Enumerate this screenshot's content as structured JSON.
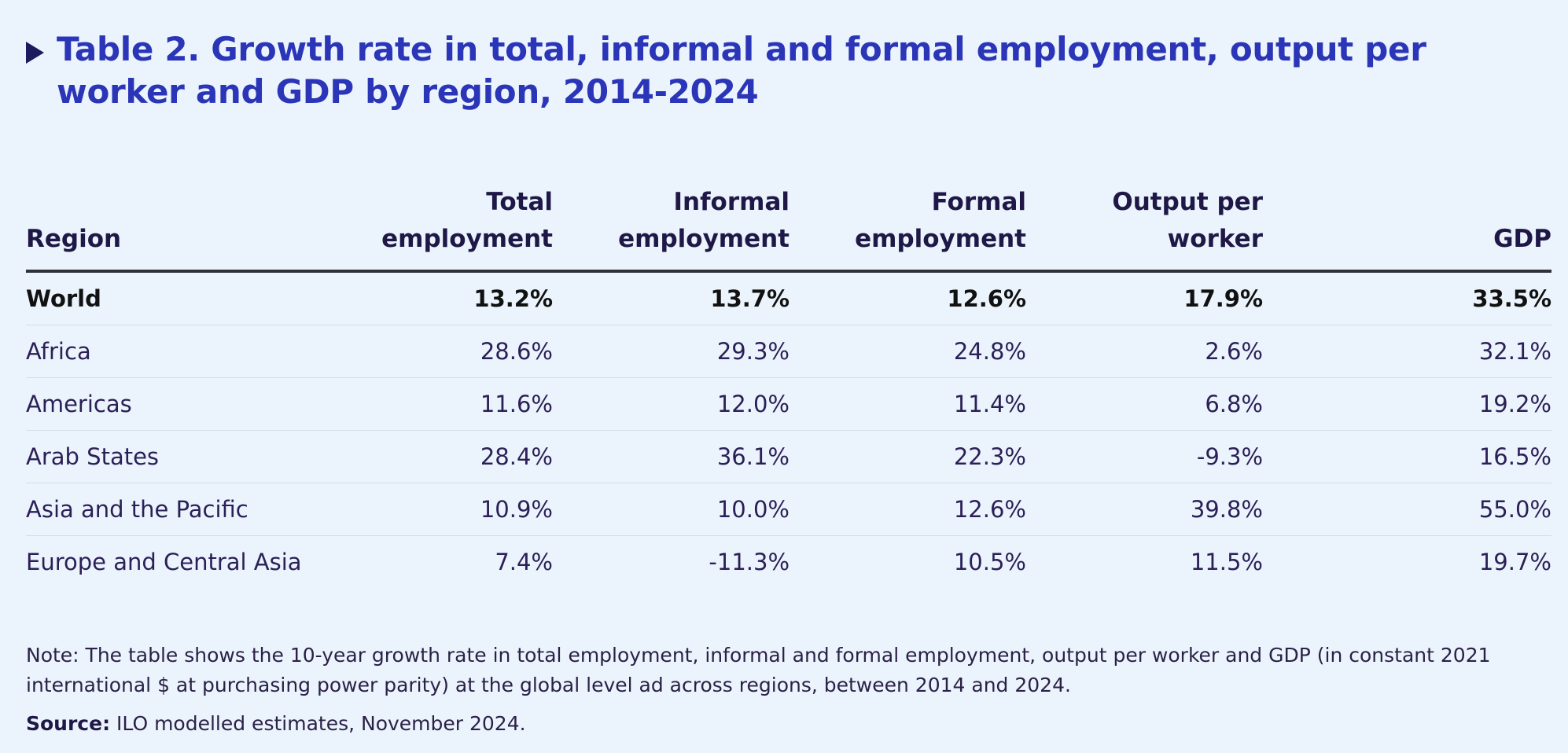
{
  "title": "Table 2. Growth rate in total, informal and formal employment, output per worker and GDP by region, 2014-2024",
  "table": {
    "headers": {
      "region": "Region",
      "total_line1": "Total",
      "total_line2": "employment",
      "informal_line1": "Informal",
      "informal_line2": "employment",
      "formal_line1": "Formal",
      "formal_line2": "employment",
      "output_line1": "Output per",
      "output_line2": "worker",
      "gdp": "GDP"
    },
    "rows": [
      {
        "region": "World",
        "total": "13.2%",
        "informal": "13.7%",
        "formal": "12.6%",
        "output": "17.9%",
        "gdp": "33.5%"
      },
      {
        "region": "Africa",
        "total": "28.6%",
        "informal": "29.3%",
        "formal": "24.8%",
        "output": "2.6%",
        "gdp": "32.1%"
      },
      {
        "region": "Americas",
        "total": "11.6%",
        "informal": "12.0%",
        "formal": "11.4%",
        "output": "6.8%",
        "gdp": "19.2%"
      },
      {
        "region": "Arab States",
        "total": "28.4%",
        "informal": "36.1%",
        "formal": "22.3%",
        "output": "-9.3%",
        "gdp": "16.5%"
      },
      {
        "region": "Asia and the Pacific",
        "total": "10.9%",
        "informal": "10.0%",
        "formal": "12.6%",
        "output": "39.8%",
        "gdp": "55.0%"
      },
      {
        "region": "Europe and Central Asia",
        "total": "7.4%",
        "informal": "-11.3%",
        "formal": "10.5%",
        "output": "11.5%",
        "gdp": "19.7%"
      }
    ]
  },
  "note": "Note: The table shows the 10-year growth rate in total employment, informal and formal employment, output per worker and GDP (in constant 2021 international $ at purchasing power parity) at the global level ad across regions, between 2014 and 2024.",
  "source": {
    "label": "Source:",
    "text": " ILO modelled estimates, November 2024."
  },
  "colors": {
    "background": "#ebf4fc",
    "title": "#2a35b8",
    "marker": "#1b1b5e",
    "text": "#2b1f57"
  },
  "icons": {
    "title_marker": "triangle-right-icon"
  }
}
